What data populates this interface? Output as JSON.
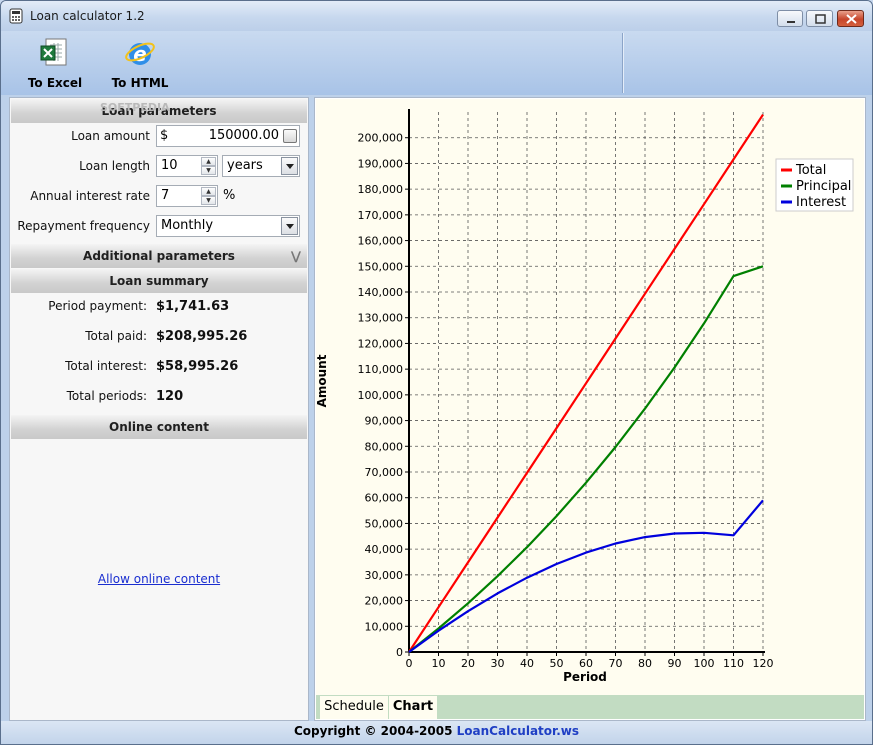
{
  "window": {
    "title": "Loan calculator 1.2"
  },
  "toolbar": {
    "to_excel": "To Excel",
    "to_html": "To HTML"
  },
  "loan_parameters": {
    "header": "Loan parameters",
    "watermark": "SOFTPEDIA",
    "amount_label": "Loan amount",
    "currency_symbol": "$",
    "amount_value": "150000.00",
    "length_label": "Loan length",
    "length_value": "10",
    "length_unit": "years",
    "rate_label": "Annual interest rate",
    "rate_value": "7",
    "rate_unit": "%",
    "frequency_label": "Repayment frequency",
    "frequency_value": "Monthly"
  },
  "additional_parameters": {
    "header": "Additional parameters"
  },
  "loan_summary": {
    "header": "Loan summary",
    "rows": [
      {
        "label": "Period payment:",
        "value": "$1,741.63"
      },
      {
        "label": "Total paid:",
        "value": "$208,995.26"
      },
      {
        "label": "Total interest:",
        "value": "$58,995.26"
      },
      {
        "label": "Total periods:",
        "value": "120"
      }
    ]
  },
  "online_content": {
    "header": "Online content",
    "link": "Allow online content"
  },
  "tabs": [
    "Schedule",
    "Chart"
  ],
  "selected_tab": "Chart",
  "status": {
    "copyright": "Copyright © 2004-2005",
    "site": "LoanCalculator.ws"
  },
  "chart_data": {
    "type": "line",
    "xlabel": "Period",
    "ylabel": "Amount",
    "xlim": [
      0,
      120
    ],
    "ylim": [
      0,
      210000
    ],
    "x_ticks": [
      0,
      10,
      20,
      30,
      40,
      50,
      60,
      70,
      80,
      90,
      100,
      110,
      120
    ],
    "y_ticks": [
      "0",
      "10,000",
      "20,000",
      "30,000",
      "40,000",
      "50,000",
      "60,000",
      "70,000",
      "80,000",
      "90,000",
      "100,000",
      "110,000",
      "120,000",
      "130,000",
      "140,000",
      "150,000",
      "160,000",
      "170,000",
      "180,000",
      "190,000",
      "200,000"
    ],
    "grid": true,
    "legend_position": "top-right",
    "x": [
      0,
      10,
      20,
      30,
      40,
      50,
      60,
      70,
      80,
      90,
      100,
      110,
      120
    ],
    "series": [
      {
        "name": "Total",
        "color": "#ff0000",
        "values": [
          0,
          17416,
          34833,
          52249,
          69665,
          87081,
          104498,
          121914,
          139330,
          156747,
          174163,
          191579,
          208995
        ]
      },
      {
        "name": "Principal",
        "color": "#008000",
        "values": [
          0,
          9147,
          18956,
          29475,
          40755,
          52851,
          65823,
          79733,
          94650,
          110645,
          127798,
          146193,
          150000
        ]
      },
      {
        "name": "Interest",
        "color": "#0000dd",
        "values": [
          0,
          8269,
          15877,
          22774,
          28910,
          34230,
          38675,
          42181,
          44680,
          46102,
          46365,
          45386,
          58995
        ]
      }
    ]
  }
}
